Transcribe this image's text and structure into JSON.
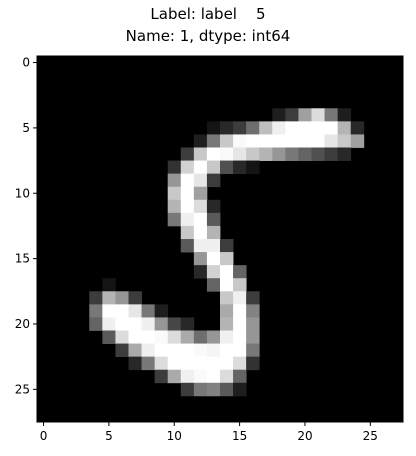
{
  "chart_data": {
    "type": "heatmap",
    "title_lines": [
      "Label: label    5",
      "Name: 1, dtype: int64"
    ],
    "colormap": "gray",
    "shape": [
      28,
      28
    ],
    "xlim": [
      -0.5,
      27.5
    ],
    "ylim": [
      27.5,
      -0.5
    ],
    "xticks": [
      0,
      5,
      10,
      15,
      20,
      25
    ],
    "yticks": [
      0,
      5,
      10,
      15,
      20,
      25
    ],
    "vmin": 0,
    "vmax": 255,
    "pixels": {
      "4": {
        "18": 30,
        "19": 60,
        "20": 160,
        "21": 220,
        "22": 120,
        "23": 30
      },
      "5": {
        "13": 20,
        "14": 40,
        "15": 60,
        "16": 110,
        "17": 190,
        "18": 240,
        "19": 255,
        "20": 255,
        "21": 255,
        "22": 255,
        "23": 180,
        "24": 40
      },
      "6": {
        "12": 30,
        "13": 120,
        "14": 200,
        "15": 250,
        "16": 255,
        "17": 255,
        "18": 255,
        "19": 255,
        "20": 255,
        "21": 255,
        "22": 230,
        "23": 200,
        "24": 160
      },
      "7": {
        "11": 60,
        "12": 200,
        "13": 255,
        "14": 250,
        "15": 230,
        "16": 200,
        "17": 180,
        "18": 150,
        "19": 120,
        "20": 100,
        "21": 80,
        "22": 60,
        "23": 40
      },
      "8": {
        "10": 50,
        "11": 210,
        "12": 255,
        "13": 200,
        "14": 80,
        "15": 40,
        "16": 20
      },
      "9": {
        "10": 150,
        "11": 255,
        "12": 230,
        "13": 60
      },
      "10": {
        "10": 200,
        "11": 255,
        "12": 160
      },
      "11": {
        "10": 180,
        "11": 255,
        "12": 220,
        "13": 40
      },
      "12": {
        "10": 120,
        "11": 240,
        "12": 255,
        "13": 90
      },
      "13": {
        "11": 200,
        "12": 255,
        "13": 180
      },
      "14": {
        "11": 90,
        "12": 240,
        "13": 240,
        "14": 60
      },
      "15": {
        "12": 150,
        "13": 255,
        "14": 200
      },
      "16": {
        "12": 40,
        "13": 210,
        "14": 255,
        "15": 100
      },
      "17": {
        "5": 20,
        "13": 100,
        "14": 255,
        "15": 200
      },
      "18": {
        "4": 60,
        "5": 180,
        "6": 150,
        "7": 60,
        "14": 200,
        "15": 240,
        "16": 60
      },
      "19": {
        "4": 120,
        "5": 255,
        "6": 255,
        "7": 230,
        "8": 120,
        "9": 30,
        "14": 170,
        "15": 255,
        "16": 130
      },
      "20": {
        "4": 100,
        "5": 240,
        "6": 255,
        "7": 255,
        "8": 240,
        "9": 150,
        "10": 70,
        "11": 40,
        "14": 180,
        "15": 255,
        "16": 150
      },
      "21": {
        "5": 90,
        "6": 220,
        "7": 255,
        "8": 255,
        "9": 250,
        "10": 220,
        "11": 170,
        "12": 110,
        "13": 150,
        "14": 240,
        "15": 255,
        "16": 150
      },
      "22": {
        "6": 60,
        "7": 170,
        "8": 240,
        "9": 255,
        "10": 255,
        "11": 255,
        "12": 250,
        "13": 245,
        "14": 255,
        "15": 255,
        "16": 120
      },
      "23": {
        "7": 40,
        "8": 120,
        "9": 220,
        "10": 255,
        "11": 255,
        "12": 255,
        "13": 255,
        "14": 255,
        "15": 220,
        "16": 50
      },
      "24": {
        "9": 60,
        "10": 170,
        "11": 240,
        "12": 250,
        "13": 255,
        "14": 220,
        "15": 100
      },
      "25": {
        "11": 60,
        "12": 120,
        "13": 130,
        "14": 90,
        "15": 30
      }
    }
  }
}
